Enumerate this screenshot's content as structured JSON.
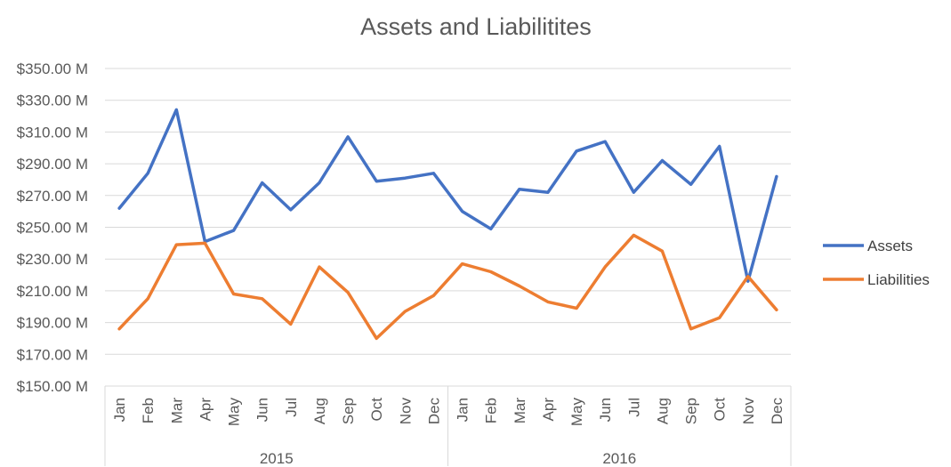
{
  "chart_data": {
    "type": "line",
    "title": "Assets and Liabilitites",
    "xlabel": "",
    "ylabel": "",
    "ylim": [
      150,
      350
    ],
    "y_ticks": [
      150,
      170,
      190,
      210,
      230,
      250,
      270,
      290,
      310,
      330,
      350
    ],
    "y_tick_labels": [
      "$150.00 M",
      "$170.00 M",
      "$190.00 M",
      "$210.00 M",
      "$230.00 M",
      "$250.00 M",
      "$270.00 M",
      "$290.00 M",
      "$310.00 M",
      "$330.00 M",
      "$350.00 M"
    ],
    "grid": true,
    "legend_position": "right",
    "categories": [
      "Jan",
      "Feb",
      "Mar",
      "Apr",
      "May",
      "Jun",
      "Jul",
      "Aug",
      "Sep",
      "Oct",
      "Nov",
      "Dec",
      "Jan",
      "Feb",
      "Mar",
      "Apr",
      "May",
      "Jun",
      "Jul",
      "Aug",
      "Sep",
      "Oct",
      "Nov",
      "Dec"
    ],
    "groups": [
      {
        "label": "2015",
        "count": 12
      },
      {
        "label": "2016",
        "count": 12
      }
    ],
    "series": [
      {
        "name": "Assets",
        "color": "#4472C4",
        "values": [
          262,
          284,
          324,
          241,
          248,
          278,
          261,
          278,
          307,
          279,
          281,
          284,
          260,
          249,
          274,
          272,
          298,
          304,
          272,
          292,
          277,
          301,
          216,
          282
        ]
      },
      {
        "name": "Liabilities",
        "color": "#ED7D31",
        "values": [
          186,
          205,
          239,
          240,
          208,
          205,
          189,
          225,
          209,
          180,
          197,
          207,
          227,
          222,
          213,
          203,
          199,
          225,
          245,
          235,
          186,
          193,
          219,
          198
        ]
      }
    ]
  }
}
